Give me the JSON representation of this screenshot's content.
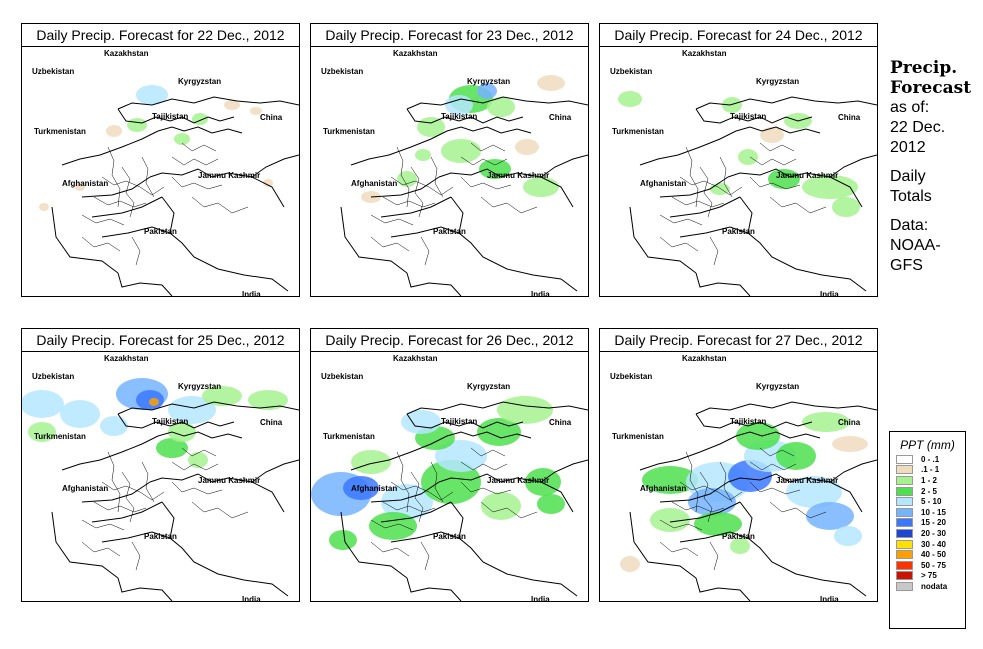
{
  "panels": [
    {
      "title": "Daily Precip. Forecast for  22 Dec., 2012",
      "pattern": "light"
    },
    {
      "title": "Daily Precip. Forecast for  23 Dec., 2012",
      "pattern": "moderate"
    },
    {
      "title": "Daily Precip. Forecast for  24 Dec., 2012",
      "pattern": "light-east"
    },
    {
      "title": "Daily Precip. Forecast for  25 Dec., 2012",
      "pattern": "north-heavy"
    },
    {
      "title": "Daily Precip. Forecast for  26 Dec., 2012",
      "pattern": "widespread"
    },
    {
      "title": "Daily Precip. Forecast for  27 Dec., 2012",
      "pattern": "central-heavy"
    }
  ],
  "map_labels": {
    "kazakhstan": "Kazakhstan",
    "uzbekistan": "Uzbekistan",
    "kyrgyzstan": "Kyrgyzstan",
    "tajikistan": "Tajikistan",
    "china": "China",
    "turkmenistan": "Turkmenistan",
    "afghanistan": "Afghanistan",
    "jammu_kashmir": "Jammu Kashmir",
    "pakistan": "Pakistan",
    "india": "India"
  },
  "side": {
    "title_line1": "Precip.",
    "title_line2": "Forecast",
    "asof_line1": "as of:",
    "asof_line2": "22 Dec.",
    "asof_line3": "2012",
    "totals_line1": "Daily",
    "totals_line2": "Totals",
    "data_line1": "Data:",
    "data_line2": "NOAA-",
    "data_line3": "GFS"
  },
  "legend": {
    "title": "PPT (mm)",
    "items": [
      {
        "label": "0 - .1",
        "color": "#ffffff"
      },
      {
        "label": ".1 - 1",
        "color": "#f0dcbe"
      },
      {
        "label": "1 - 2",
        "color": "#a6f28f"
      },
      {
        "label": "2 - 5",
        "color": "#4ee04e"
      },
      {
        "label": "5 - 10",
        "color": "#b4e6ff"
      },
      {
        "label": "10 - 15",
        "color": "#74b4ff"
      },
      {
        "label": "15 - 20",
        "color": "#3c78ff"
      },
      {
        "label": "20 - 30",
        "color": "#1e46d2"
      },
      {
        "label": "30 - 40",
        "color": "#ffe000"
      },
      {
        "label": "40 - 50",
        "color": "#ffa000"
      },
      {
        "label": "50 - 75",
        "color": "#ff3200"
      },
      {
        "label": "> 75",
        "color": "#c81400"
      },
      {
        "label": "nodata",
        "color": "#c8c8c8"
      }
    ]
  }
}
